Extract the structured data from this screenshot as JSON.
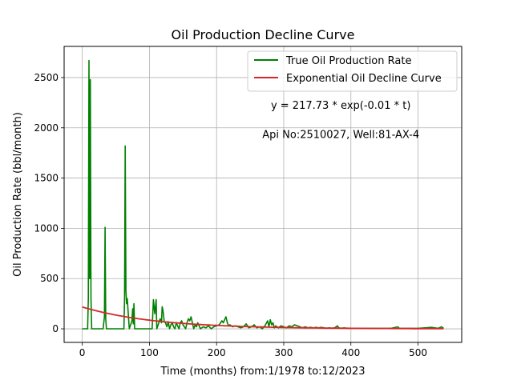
{
  "chart_data": {
    "type": "line",
    "title": "Oil Production Decline Curve",
    "xlabel": "Time (months) from:1/1978 to:12/2023",
    "ylabel": "Oil Production Rate (bbl/month)",
    "xlim": [
      -27,
      565
    ],
    "ylim": [
      -135,
      2810
    ],
    "xticks": [
      0,
      100,
      200,
      300,
      400,
      500
    ],
    "yticks": [
      0,
      500,
      1000,
      1500,
      2000,
      2500
    ],
    "grid": true,
    "legend_position": "top-right",
    "annotations": [
      {
        "text": "y = 217.73 * exp(-0.01 * t)",
        "x": 385,
        "y": 2190
      },
      {
        "text": "Api No:2510027, Well:81-AX-4",
        "x": 385,
        "y": 1900
      }
    ],
    "series": [
      {
        "name": "True Oil Production Rate",
        "color": "#008000",
        "points": [
          [
            0,
            0
          ],
          [
            8,
            0
          ],
          [
            9,
            300
          ],
          [
            10,
            2670
          ],
          [
            11,
            500
          ],
          [
            12,
            2480
          ],
          [
            13,
            300
          ],
          [
            14,
            0
          ],
          [
            31,
            0
          ],
          [
            33,
            120
          ],
          [
            34,
            1010
          ],
          [
            35,
            100
          ],
          [
            36,
            0
          ],
          [
            62,
            0
          ],
          [
            63,
            300
          ],
          [
            64,
            1820
          ],
          [
            65,
            380
          ],
          [
            66,
            250
          ],
          [
            67,
            300
          ],
          [
            68,
            200
          ],
          [
            70,
            0
          ],
          [
            74,
            80
          ],
          [
            75,
            200
          ],
          [
            76,
            50
          ],
          [
            77,
            250
          ],
          [
            78,
            0
          ],
          [
            104,
            0
          ],
          [
            106,
            290
          ],
          [
            108,
            150
          ],
          [
            110,
            290
          ],
          [
            111,
            0
          ],
          [
            116,
            100
          ],
          [
            118,
            60
          ],
          [
            119,
            220
          ],
          [
            120,
            190
          ],
          [
            121,
            140
          ],
          [
            122,
            70
          ],
          [
            124,
            60
          ],
          [
            126,
            20
          ],
          [
            128,
            70
          ],
          [
            130,
            0
          ],
          [
            132,
            40
          ],
          [
            134,
            60
          ],
          [
            136,
            20
          ],
          [
            138,
            0
          ],
          [
            140,
            60
          ],
          [
            142,
            30
          ],
          [
            144,
            0
          ],
          [
            146,
            60
          ],
          [
            148,
            80
          ],
          [
            150,
            40
          ],
          [
            152,
            20
          ],
          [
            154,
            0
          ],
          [
            156,
            60
          ],
          [
            158,
            100
          ],
          [
            160,
            80
          ],
          [
            162,
            120
          ],
          [
            164,
            60
          ],
          [
            166,
            0
          ],
          [
            168,
            40
          ],
          [
            170,
            20
          ],
          [
            172,
            60
          ],
          [
            174,
            30
          ],
          [
            176,
            0
          ],
          [
            180,
            20
          ],
          [
            184,
            10
          ],
          [
            188,
            30
          ],
          [
            192,
            0
          ],
          [
            196,
            20
          ],
          [
            200,
            30
          ],
          [
            204,
            40
          ],
          [
            208,
            80
          ],
          [
            210,
            60
          ],
          [
            212,
            90
          ],
          [
            214,
            120
          ],
          [
            216,
            60
          ],
          [
            218,
            30
          ],
          [
            220,
            40
          ],
          [
            224,
            20
          ],
          [
            228,
            30
          ],
          [
            232,
            20
          ],
          [
            236,
            10
          ],
          [
            240,
            20
          ],
          [
            244,
            50
          ],
          [
            248,
            10
          ],
          [
            252,
            20
          ],
          [
            256,
            40
          ],
          [
            260,
            10
          ],
          [
            264,
            20
          ],
          [
            268,
            0
          ],
          [
            272,
            30
          ],
          [
            276,
            80
          ],
          [
            278,
            20
          ],
          [
            280,
            90
          ],
          [
            282,
            40
          ],
          [
            284,
            60
          ],
          [
            286,
            10
          ],
          [
            288,
            30
          ],
          [
            292,
            10
          ],
          [
            296,
            30
          ],
          [
            300,
            20
          ],
          [
            304,
            10
          ],
          [
            308,
            30
          ],
          [
            312,
            20
          ],
          [
            316,
            40
          ],
          [
            320,
            30
          ],
          [
            324,
            20
          ],
          [
            328,
            10
          ],
          [
            332,
            20
          ],
          [
            336,
            10
          ],
          [
            340,
            15
          ],
          [
            344,
            10
          ],
          [
            348,
            15
          ],
          [
            352,
            10
          ],
          [
            356,
            15
          ],
          [
            360,
            10
          ],
          [
            364,
            5
          ],
          [
            368,
            10
          ],
          [
            372,
            5
          ],
          [
            376,
            10
          ],
          [
            380,
            30
          ],
          [
            382,
            10
          ],
          [
            386,
            5
          ],
          [
            390,
            10
          ],
          [
            394,
            5
          ],
          [
            400,
            5
          ],
          [
            410,
            5
          ],
          [
            420,
            5
          ],
          [
            430,
            5
          ],
          [
            440,
            5
          ],
          [
            450,
            5
          ],
          [
            460,
            5
          ],
          [
            470,
            20
          ],
          [
            472,
            5
          ],
          [
            480,
            5
          ],
          [
            490,
            5
          ],
          [
            500,
            5
          ],
          [
            510,
            10
          ],
          [
            520,
            15
          ],
          [
            530,
            5
          ],
          [
            535,
            20
          ],
          [
            538,
            5
          ]
        ]
      },
      {
        "name": "Exponential Oil Decline Curve",
        "color": "#d62728",
        "model": {
          "a": 217.73,
          "k": 0.00925,
          "x_start": 0,
          "x_end": 538
        }
      }
    ]
  }
}
